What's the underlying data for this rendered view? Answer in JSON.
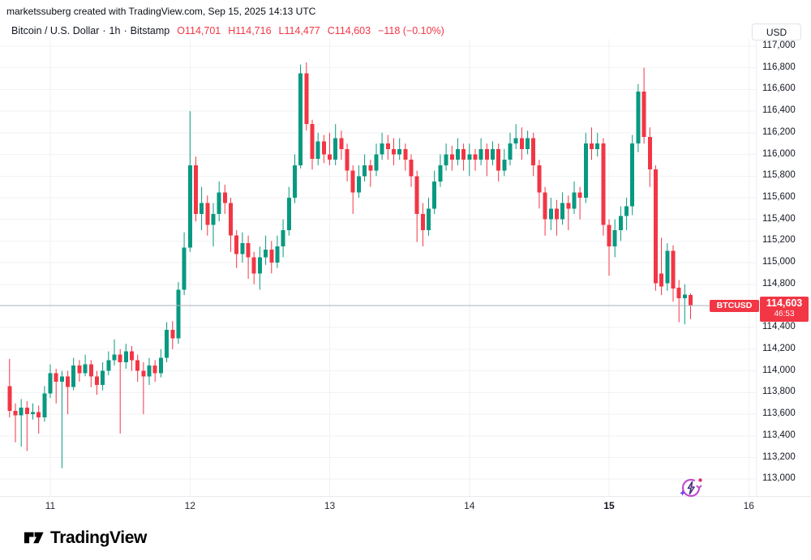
{
  "attribution": "marketssuberg created with TradingView.com, Sep 15, 2025 14:13 UTC",
  "header": {
    "symbol": "Bitcoin / U.S. Dollar",
    "interval": "1h",
    "exchange": "Bitstamp",
    "separator": "·",
    "ohlc_items": [
      "O114,701",
      "H114,716",
      "L114,477",
      "C114,603",
      "−118 (−0.10%)"
    ]
  },
  "price_scale": {
    "currency_button": "USD",
    "last": {
      "symbol": "BTCUSD",
      "display": "114,603",
      "countdown": "46:53"
    }
  },
  "footer": {
    "logo_text": "TradingView"
  },
  "icons": [
    "flash-icon",
    "tradingview-logo-icon"
  ],
  "colors": {
    "up": "#089981",
    "down": "#f23645",
    "grid": "#f0f2f5",
    "price_line": "#b2b5be",
    "accent_red": "#f23645",
    "axis_text": "#131722"
  },
  "chart_data": {
    "type": "candlestick",
    "title": "Bitcoin / U.S. Dollar",
    "symbol": "BTCUSD",
    "exchange": "Bitstamp",
    "interval": "1h",
    "currency": "USD",
    "last_price": 114603,
    "change": -118,
    "change_pct": -0.1,
    "countdown": "46:53",
    "y_axis": {
      "min": 113000,
      "max": 117000,
      "step": 200
    },
    "x_ticks": [
      {
        "label": "11",
        "i": 7
      },
      {
        "label": "12",
        "i": 31
      },
      {
        "label": "13",
        "i": 55
      },
      {
        "label": "14",
        "i": 79
      },
      {
        "label": "15",
        "i": 103,
        "bold": true
      },
      {
        "label": "16",
        "i": 127
      }
    ],
    "candles": [
      [
        113860,
        114110,
        113570,
        113630
      ],
      [
        113630,
        113700,
        113340,
        113590
      ],
      [
        113590,
        113740,
        113300,
        113660
      ],
      [
        113660,
        113720,
        113260,
        113600
      ],
      [
        113600,
        113700,
        113550,
        113620
      ],
      [
        113620,
        113680,
        113420,
        113570
      ],
      [
        113570,
        113860,
        113530,
        113790
      ],
      [
        113790,
        114060,
        113750,
        113980
      ],
      [
        113980,
        114020,
        113700,
        113900
      ],
      [
        113900,
        114000,
        113100,
        113950
      ],
      [
        113950,
        114000,
        113600,
        113850
      ],
      [
        113850,
        114120,
        113820,
        114050
      ],
      [
        114050,
        114100,
        113900,
        113980
      ],
      [
        113980,
        114150,
        113950,
        114060
      ],
      [
        114060,
        114100,
        113850,
        113950
      ],
      [
        113950,
        114000,
        113780,
        113870
      ],
      [
        113870,
        114080,
        113820,
        114000
      ],
      [
        114000,
        114180,
        113960,
        114100
      ],
      [
        114100,
        114290,
        114050,
        114150
      ],
      [
        114150,
        114200,
        113420,
        114080
      ],
      [
        114080,
        114250,
        114020,
        114180
      ],
      [
        114180,
        114230,
        114000,
        114100
      ],
      [
        114100,
        114150,
        113900,
        114000
      ],
      [
        114000,
        114080,
        113600,
        113950
      ],
      [
        113950,
        114120,
        113870,
        114050
      ],
      [
        114050,
        114100,
        113900,
        113980
      ],
      [
        113980,
        114200,
        113940,
        114120
      ],
      [
        114120,
        114450,
        114080,
        114380
      ],
      [
        114380,
        114460,
        114200,
        114300
      ],
      [
        114300,
        114820,
        114250,
        114750
      ],
      [
        114750,
        115280,
        114700,
        115140
      ],
      [
        115140,
        116400,
        115100,
        115900
      ],
      [
        115900,
        115980,
        115380,
        115450
      ],
      [
        115450,
        115700,
        115300,
        115550
      ],
      [
        115550,
        115620,
        115250,
        115350
      ],
      [
        115350,
        115550,
        115150,
        115450
      ],
      [
        115450,
        115750,
        115380,
        115650
      ],
      [
        115650,
        115720,
        115450,
        115550
      ],
      [
        115550,
        115600,
        115100,
        115250
      ],
      [
        115250,
        115300,
        114950,
        115080
      ],
      [
        115080,
        115280,
        115000,
        115180
      ],
      [
        115180,
        115250,
        114850,
        115050
      ],
      [
        115050,
        115100,
        114800,
        114900
      ],
      [
        114900,
        115150,
        114750,
        115050
      ],
      [
        115050,
        115250,
        114980,
        115120
      ],
      [
        115120,
        115200,
        114900,
        115000
      ],
      [
        115000,
        115250,
        114950,
        115150
      ],
      [
        115150,
        115400,
        115050,
        115300
      ],
      [
        115300,
        115700,
        115250,
        115600
      ],
      [
        115600,
        116000,
        115550,
        115900
      ],
      [
        115900,
        116830,
        115870,
        116750
      ],
      [
        116750,
        116850,
        116220,
        116280
      ],
      [
        116280,
        116320,
        115860,
        115960
      ],
      [
        115960,
        116200,
        115900,
        116120
      ],
      [
        116120,
        116180,
        115920,
        116000
      ],
      [
        116000,
        116200,
        115900,
        115950
      ],
      [
        115950,
        116280,
        115900,
        116150
      ],
      [
        116150,
        116220,
        115950,
        116050
      ],
      [
        116050,
        116100,
        115750,
        115850
      ],
      [
        115850,
        115900,
        115450,
        115650
      ],
      [
        115650,
        115900,
        115600,
        115800
      ],
      [
        115800,
        116000,
        115750,
        115900
      ],
      [
        115900,
        115950,
        115700,
        115850
      ],
      [
        115850,
        116100,
        115800,
        116000
      ],
      [
        116000,
        116200,
        115950,
        116100
      ],
      [
        116100,
        116180,
        115950,
        116050
      ],
      [
        116050,
        116150,
        115900,
        116000
      ],
      [
        116000,
        116150,
        115950,
        116050
      ],
      [
        116050,
        116100,
        115850,
        115950
      ],
      [
        115950,
        116000,
        115700,
        115800
      ],
      [
        115800,
        115850,
        115190,
        115450
      ],
      [
        115450,
        115550,
        115150,
        115300
      ],
      [
        115300,
        115600,
        115250,
        115500
      ],
      [
        115500,
        115850,
        115450,
        115750
      ],
      [
        115750,
        116000,
        115700,
        115900
      ],
      [
        115900,
        116100,
        115850,
        116000
      ],
      [
        116000,
        116080,
        115850,
        115950
      ],
      [
        115950,
        116150,
        115900,
        116050
      ],
      [
        116050,
        116100,
        115850,
        115950
      ],
      [
        115950,
        116100,
        115800,
        116000
      ],
      [
        116000,
        116050,
        115850,
        115950
      ],
      [
        115950,
        116150,
        115900,
        116050
      ],
      [
        116050,
        116100,
        115800,
        115950
      ],
      [
        115950,
        116120,
        115900,
        116050
      ],
      [
        116050,
        116100,
        115750,
        115850
      ],
      [
        115850,
        116050,
        115800,
        115950
      ],
      [
        115950,
        116200,
        115900,
        116100
      ],
      [
        116100,
        116280,
        116050,
        116150
      ],
      [
        116150,
        116250,
        115950,
        116050
      ],
      [
        116050,
        116220,
        116000,
        116150
      ],
      [
        116150,
        116200,
        115800,
        115900
      ],
      [
        115900,
        115950,
        115500,
        115650
      ],
      [
        115650,
        115700,
        115250,
        115400
      ],
      [
        115400,
        115600,
        115300,
        115500
      ],
      [
        115500,
        115580,
        115250,
        115400
      ],
      [
        115400,
        115650,
        115350,
        115550
      ],
      [
        115550,
        115620,
        115300,
        115500
      ],
      [
        115500,
        115750,
        115450,
        115650
      ],
      [
        115650,
        115700,
        115400,
        115600
      ],
      [
        115600,
        116200,
        115550,
        116100
      ],
      [
        116100,
        116250,
        115950,
        116050
      ],
      [
        116050,
        116200,
        115980,
        116100
      ],
      [
        116100,
        116150,
        115250,
        115350
      ],
      [
        115350,
        115400,
        114880,
        115150
      ],
      [
        115150,
        115400,
        115050,
        115300
      ],
      [
        115300,
        115520,
        115200,
        115430
      ],
      [
        115430,
        115600,
        115300,
        115520
      ],
      [
        115520,
        116180,
        115440,
        116100
      ],
      [
        116100,
        116650,
        116020,
        116580
      ],
      [
        116580,
        116800,
        116100,
        116160
      ],
      [
        116160,
        116250,
        115700,
        115860
      ],
      [
        115860,
        115900,
        114740,
        114810
      ],
      [
        114900,
        115230,
        114700,
        114780
      ],
      [
        114810,
        115180,
        114740,
        115110
      ],
      [
        115110,
        115160,
        114640,
        114760
      ],
      [
        114770,
        114840,
        114450,
        114670
      ],
      [
        114670,
        114800,
        114430,
        114705
      ],
      [
        114701,
        114716,
        114477,
        114603
      ]
    ]
  }
}
